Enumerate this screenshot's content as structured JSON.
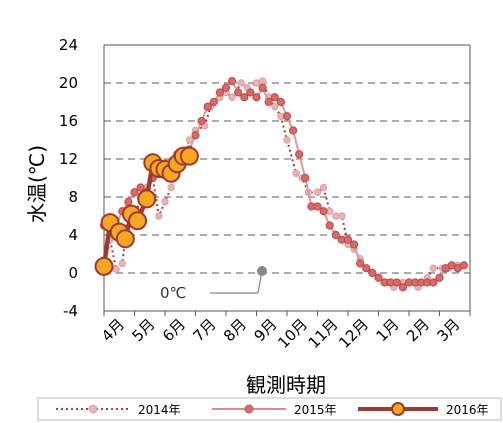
{
  "chart_data": {
    "type": "line",
    "xlabel": "観測時期",
    "ylabel": "水温(℃)",
    "ylim": [
      -4,
      24
    ],
    "yticks": [
      "-4",
      "0",
      "4",
      "8",
      "12",
      "16",
      "20",
      "24"
    ],
    "categories": [
      "4月",
      "5月",
      "6月",
      "7月",
      "8月",
      "9月",
      "10月",
      "11月",
      "12月",
      "1月",
      "2月",
      "3月"
    ],
    "grid": "horizontal dashed",
    "legend_position": "bottom",
    "annotation": "0℃",
    "series": [
      {
        "name": "2014年",
        "color": "#d9a0a0",
        "style": "dotted",
        "x": [
          0.0,
          0.2,
          0.4,
          0.6,
          0.8,
          1.0,
          1.2,
          1.4,
          1.6,
          1.8,
          2.0,
          2.2,
          2.4,
          2.6,
          2.8,
          3.0,
          3.3,
          3.5,
          3.8,
          4.0,
          4.2,
          4.5,
          4.7,
          5.0,
          5.2,
          5.4,
          5.6,
          5.8,
          6.0,
          6.3,
          6.5,
          6.7,
          7.0,
          7.2,
          7.4,
          7.6,
          7.8,
          8.0,
          8.2,
          8.4,
          8.6,
          8.8,
          9.0,
          9.3,
          9.5,
          9.8,
          10.0,
          10.3,
          10.6,
          10.8,
          11.1,
          11.3,
          11.6,
          11.8
        ],
        "y": [
          0.5,
          3.5,
          0.4,
          1.0,
          6.5,
          5.5,
          8.0,
          9.0,
          10.0,
          6.0,
          7.5,
          9.0,
          11.0,
          12.5,
          14.0,
          15.0,
          15.5,
          17.5,
          18.5,
          19.0,
          18.5,
          20.0,
          19.5,
          20.0,
          20.2,
          18.5,
          17.5,
          16.5,
          14.0,
          10.5,
          10.0,
          8.5,
          8.5,
          9.0,
          6.5,
          6.0,
          6.0,
          3.0,
          2.5,
          1.5,
          0.5,
          0.0,
          -0.5,
          -1.0,
          -1.5,
          -1.0,
          -1.0,
          -1.5,
          -0.5,
          0.5,
          0.5,
          0.5,
          0.8,
          0.8
        ]
      },
      {
        "name": "2015年",
        "color": "#c75454",
        "style": "solid",
        "x": [
          0.0,
          0.2,
          0.4,
          0.6,
          0.8,
          1.0,
          1.2,
          1.4,
          1.6,
          1.8,
          2.0,
          2.2,
          2.4,
          2.6,
          2.8,
          3.0,
          3.2,
          3.4,
          3.6,
          3.8,
          4.0,
          4.2,
          4.4,
          4.6,
          4.8,
          5.0,
          5.2,
          5.4,
          5.6,
          5.8,
          6.0,
          6.2,
          6.4,
          6.6,
          6.8,
          7.0,
          7.2,
          7.4,
          7.6,
          7.8,
          8.0,
          8.2,
          8.4,
          8.6,
          8.8,
          9.0,
          9.2,
          9.4,
          9.6,
          9.8,
          10.0,
          10.2,
          10.4,
          10.6,
          10.8,
          11.0,
          11.2,
          11.4,
          11.6,
          11.8
        ],
        "y": [
          5.0,
          5.5,
          5.0,
          6.5,
          7.5,
          8.5,
          9.0,
          8.5,
          10.0,
          11.0,
          11.5,
          11.5,
          12.5,
          12.0,
          13.0,
          14.5,
          16.0,
          17.5,
          18.0,
          19.0,
          19.5,
          20.2,
          19.0,
          18.5,
          19.0,
          18.5,
          19.5,
          18.0,
          18.5,
          18.0,
          16.5,
          15.0,
          12.5,
          10.0,
          7.0,
          7.0,
          6.5,
          5.0,
          4.0,
          3.5,
          3.5,
          3.0,
          1.0,
          0.5,
          0.0,
          -0.5,
          -1.0,
          -1.0,
          -1.0,
          -1.5,
          -1.0,
          -1.0,
          -1.0,
          -1.0,
          -1.0,
          -0.5,
          0.5,
          0.8,
          0.5,
          0.8
        ]
      },
      {
        "name": "2016年",
        "color": "#9e3a2e",
        "marker_fill": "#f5a623",
        "style": "solid-thick",
        "x": [
          0.0,
          0.2,
          0.5,
          0.7,
          0.9,
          1.1,
          1.4,
          1.6,
          1.8,
          2.0,
          2.2,
          2.4,
          2.6,
          2.8
        ],
        "y": [
          0.7,
          5.3,
          4.3,
          3.6,
          6.2,
          5.5,
          7.8,
          11.6,
          11.0,
          10.9,
          10.5,
          11.5,
          12.3,
          12.3
        ]
      }
    ]
  }
}
